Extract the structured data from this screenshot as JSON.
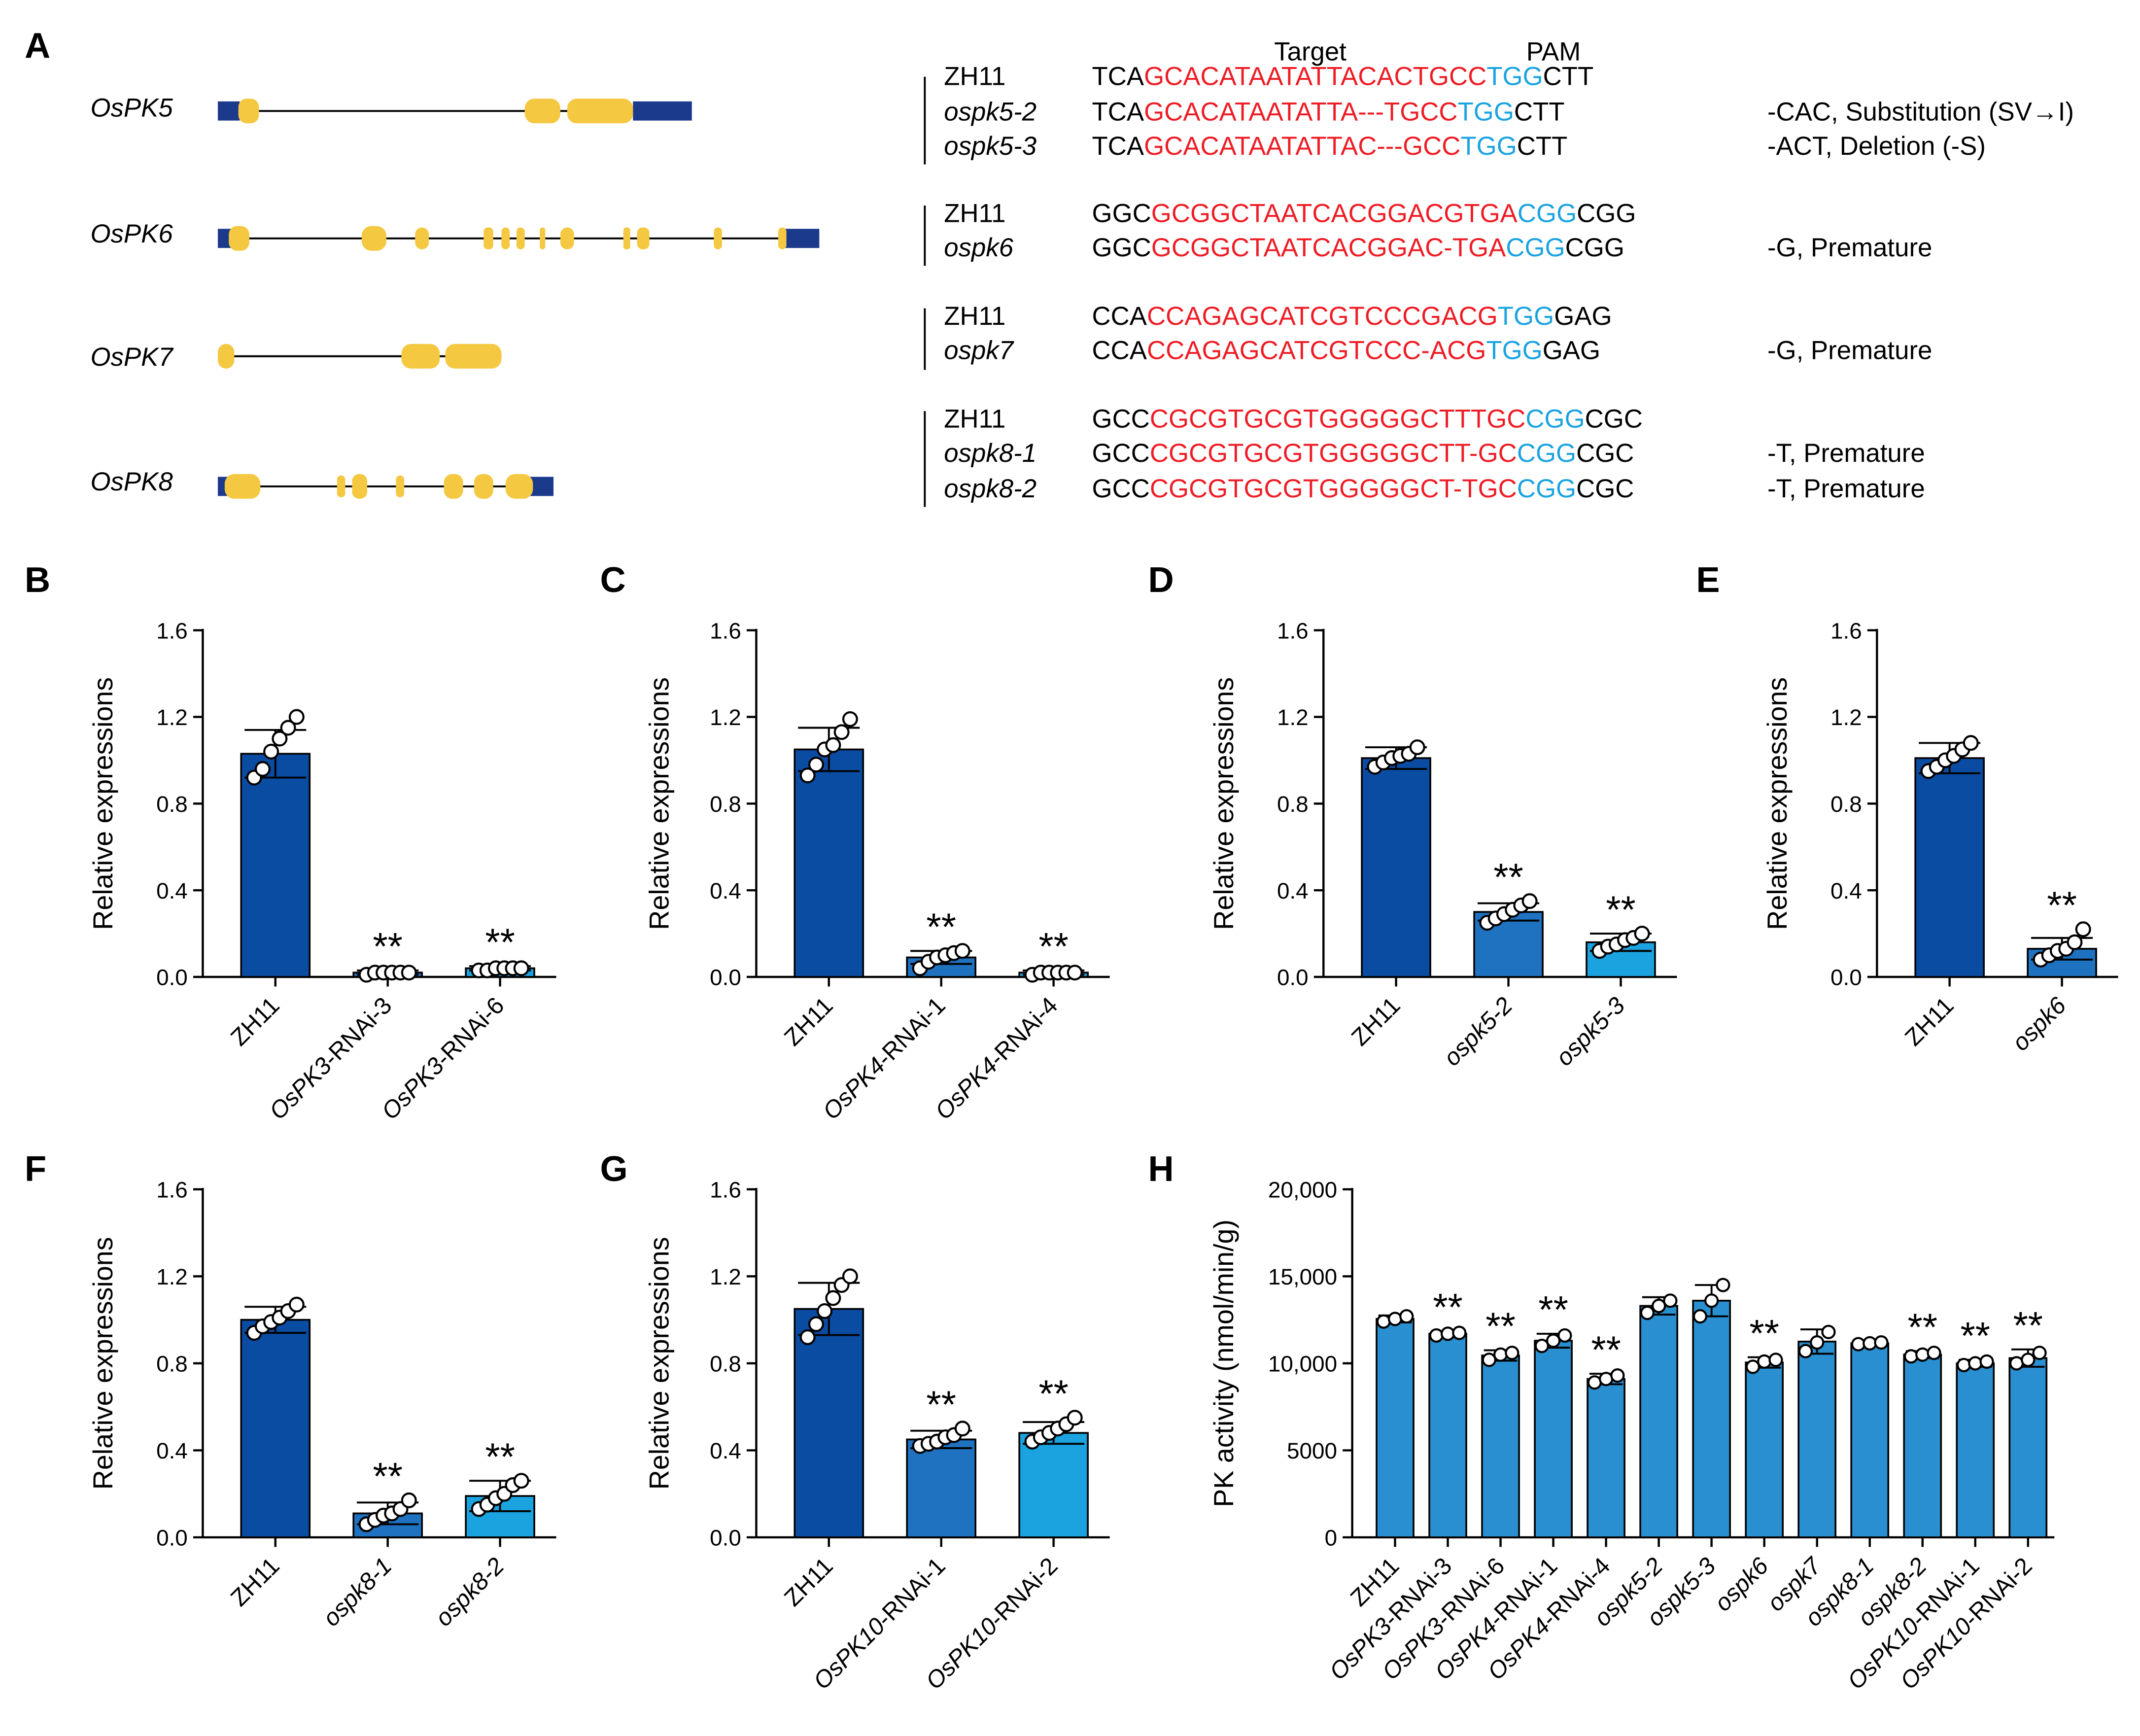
{
  "colors": {
    "bar_dark": "#0b4ca3",
    "bar_mid": "#1f72c0",
    "bar_light": "#1ba3df",
    "bar_h": "#2a8fd0",
    "target_red": "#ee1c25",
    "pam_blue": "#1aa3e0",
    "exon_yellow": "#f5c842",
    "utr_blue": "#1c3a8c"
  },
  "panel_a": {
    "label": "A",
    "col_target": "Target",
    "col_pam": "PAM",
    "genes": [
      {
        "name": "OsPK5"
      },
      {
        "name": "OsPK6"
      },
      {
        "name": "OsPK7"
      },
      {
        "name": "OsPK8"
      }
    ],
    "groups": [
      {
        "rows": [
          {
            "name": "ZH11",
            "italic": false,
            "p": "TCA",
            "t": "GCACATAATATTACACTGCC",
            "pam": "TGG",
            "s": "CTT",
            "note": ""
          },
          {
            "name": "ospk5-2",
            "italic": true,
            "p": "TCA",
            "t": "GCACATAATATTA---TGCC",
            "pam": "TGG",
            "s": "CTT",
            "note": "-CAC, Substitution (SV→I)"
          },
          {
            "name": "ospk5-3",
            "italic": true,
            "p": "TCA",
            "t": "GCACATAATATTAC---GCC",
            "pam": "TGG",
            "s": "CTT",
            "note": "-ACT,  Deletion (-S)"
          }
        ]
      },
      {
        "rows": [
          {
            "name": "ZH11",
            "italic": false,
            "p": "GGC",
            "t": "GCGGCTAATCACGGACGTGA",
            "pam": "CGG",
            "s": "CGG",
            "note": ""
          },
          {
            "name": "ospk6",
            "italic": true,
            "p": "GGC",
            "t": "GCGGCTAATCACGGAC-TGA",
            "pam": "CGG",
            "s": "CGG",
            "note": "-G, Premature"
          }
        ]
      },
      {
        "rows": [
          {
            "name": "ZH11",
            "italic": false,
            "p": "CCA",
            "t": "CCAGAGCATCGTCCCGACG",
            "pam": "TGG",
            "s": "GAG",
            "note": ""
          },
          {
            "name": "ospk7",
            "italic": true,
            "p": "CCA",
            "t": "CCAGAGCATCGTCCC-ACG",
            "pam": "TGG",
            "s": "GAG",
            "note": "-G, Premature"
          }
        ]
      },
      {
        "rows": [
          {
            "name": "ZH11",
            "italic": false,
            "p": "GCC",
            "t": "CGCGTGCGTGGGGGCTTTGC",
            "pam": "CGG",
            "s": "CGC",
            "note": ""
          },
          {
            "name": "ospk8-1",
            "italic": true,
            "p": "GCC",
            "t": "CGCGTGCGTGGGGGCTT-GC",
            "pam": "CGG",
            "s": "CGC",
            "note": "-T, Premature"
          },
          {
            "name": "ospk8-2",
            "italic": true,
            "p": "GCC",
            "t": "CGCGTGCGTGGGGGCT-TGC",
            "pam": "CGG",
            "s": "CGC",
            "note": "-T, Premature"
          }
        ]
      }
    ]
  },
  "chart_data": [
    {
      "panel": "B",
      "type": "bar",
      "ylabel": "Relative expressions",
      "ylim": [
        0,
        1.6
      ],
      "yticks": [
        "0.0",
        "0.4",
        "0.8",
        "1.2",
        "1.6"
      ],
      "categories": [
        {
          "pre": "",
          "it": "",
          "post": "ZH11"
        },
        {
          "pre": "",
          "it": "OsPK3",
          "post": "-RNAi-3"
        },
        {
          "pre": "",
          "it": "OsPK3",
          "post": "-RNAi-6"
        }
      ],
      "values": [
        1.03,
        0.02,
        0.04
      ],
      "errors": [
        0.11,
        0.01,
        0.01
      ],
      "points": [
        [
          0.92,
          0.96,
          1.04,
          1.1,
          1.15,
          1.2
        ],
        [
          0.01,
          0.02,
          0.02,
          0.02,
          0.02,
          0.02
        ],
        [
          0.03,
          0.03,
          0.04,
          0.04,
          0.04,
          0.04
        ]
      ],
      "annotations": [
        "",
        "**",
        "**"
      ]
    },
    {
      "panel": "C",
      "type": "bar",
      "ylabel": "Relative expressions",
      "ylim": [
        0,
        1.6
      ],
      "yticks": [
        "0.0",
        "0.4",
        "0.8",
        "1.2",
        "1.6"
      ],
      "categories": [
        {
          "pre": "",
          "it": "",
          "post": "ZH11"
        },
        {
          "pre": "",
          "it": "OsPK4",
          "post": "-RNAi-1"
        },
        {
          "pre": "",
          "it": "OsPK4",
          "post": "-RNAi-4"
        }
      ],
      "values": [
        1.05,
        0.09,
        0.02
      ],
      "errors": [
        0.1,
        0.03,
        0.01
      ],
      "points": [
        [
          0.93,
          0.98,
          1.05,
          1.07,
          1.13,
          1.19
        ],
        [
          0.04,
          0.07,
          0.09,
          0.1,
          0.11,
          0.12
        ],
        [
          0.01,
          0.02,
          0.02,
          0.02,
          0.02,
          0.02
        ]
      ],
      "annotations": [
        "",
        "**",
        "**"
      ]
    },
    {
      "panel": "D",
      "type": "bar",
      "ylabel": "Relative expressions",
      "ylim": [
        0,
        1.6
      ],
      "yticks": [
        "0.0",
        "0.4",
        "0.8",
        "1.2",
        "1.6"
      ],
      "categories": [
        {
          "pre": "",
          "it": "",
          "post": "ZH11"
        },
        {
          "pre": "",
          "it": "ospk5-2",
          "post": ""
        },
        {
          "pre": "",
          "it": "ospk5-3",
          "post": ""
        }
      ],
      "values": [
        1.01,
        0.3,
        0.16
      ],
      "errors": [
        0.05,
        0.04,
        0.04
      ],
      "points": [
        [
          0.97,
          0.99,
          1.01,
          1.02,
          1.03,
          1.06
        ],
        [
          0.25,
          0.27,
          0.29,
          0.31,
          0.33,
          0.35
        ],
        [
          0.12,
          0.14,
          0.15,
          0.17,
          0.18,
          0.2
        ]
      ],
      "annotations": [
        "",
        "**",
        "**"
      ]
    },
    {
      "panel": "E",
      "type": "bar",
      "ylabel": "Relative expressions",
      "ylim": [
        0,
        1.6
      ],
      "yticks": [
        "0.0",
        "0.4",
        "0.8",
        "1.2",
        "1.6"
      ],
      "categories": [
        {
          "pre": "",
          "it": "",
          "post": "ZH11"
        },
        {
          "pre": "",
          "it": "ospk6",
          "post": ""
        }
      ],
      "values": [
        1.01,
        0.13
      ],
      "errors": [
        0.07,
        0.05
      ],
      "points": [
        [
          0.95,
          0.97,
          1.0,
          1.02,
          1.05,
          1.08
        ],
        [
          0.08,
          0.1,
          0.12,
          0.13,
          0.16,
          0.22
        ]
      ],
      "annotations": [
        "",
        "**"
      ]
    },
    {
      "panel": "F",
      "type": "bar",
      "ylabel": "Relative expressions",
      "ylim": [
        0,
        1.6
      ],
      "yticks": [
        "0.0",
        "0.4",
        "0.8",
        "1.2",
        "1.6"
      ],
      "categories": [
        {
          "pre": "",
          "it": "",
          "post": "ZH11"
        },
        {
          "pre": "",
          "it": "ospk8-1",
          "post": ""
        },
        {
          "pre": "",
          "it": "ospk8-2",
          "post": ""
        }
      ],
      "values": [
        1.0,
        0.11,
        0.19
      ],
      "errors": [
        0.06,
        0.05,
        0.07
      ],
      "points": [
        [
          0.94,
          0.97,
          0.99,
          1.01,
          1.04,
          1.07
        ],
        [
          0.06,
          0.08,
          0.1,
          0.11,
          0.13,
          0.17
        ],
        [
          0.13,
          0.15,
          0.18,
          0.2,
          0.24,
          0.26
        ]
      ],
      "annotations": [
        "",
        "**",
        "**"
      ]
    },
    {
      "panel": "G",
      "type": "bar",
      "ylabel": "Relative expressions",
      "ylim": [
        0,
        1.6
      ],
      "yticks": [
        "0.0",
        "0.4",
        "0.8",
        "1.2",
        "1.6"
      ],
      "categories": [
        {
          "pre": "",
          "it": "",
          "post": "ZH11"
        },
        {
          "pre": "",
          "it": "OsPK10",
          "post": "-RNAi-1"
        },
        {
          "pre": "",
          "it": "OsPK10",
          "post": "-RNAi-2"
        }
      ],
      "values": [
        1.05,
        0.45,
        0.48
      ],
      "errors": [
        0.12,
        0.04,
        0.05
      ],
      "points": [
        [
          0.92,
          0.98,
          1.04,
          1.1,
          1.16,
          1.2
        ],
        [
          0.42,
          0.43,
          0.44,
          0.46,
          0.47,
          0.5
        ],
        [
          0.44,
          0.46,
          0.48,
          0.5,
          0.52,
          0.55
        ]
      ],
      "annotations": [
        "",
        "**",
        "**"
      ]
    },
    {
      "panel": "H",
      "type": "bar",
      "ylabel": "PK activity (nmol/min/g)",
      "ylim": [
        0,
        20000
      ],
      "yticks": [
        "0",
        "5000",
        "10,000",
        "15,000",
        "20,000"
      ],
      "categories": [
        {
          "pre": "",
          "it": "",
          "post": "ZH11"
        },
        {
          "pre": "",
          "it": "OsPK3",
          "post": "-RNAi-3"
        },
        {
          "pre": "",
          "it": "OsPK3",
          "post": "-RNAi-6"
        },
        {
          "pre": "",
          "it": "OsPK4",
          "post": "-RNAi-1"
        },
        {
          "pre": "",
          "it": "OsPK4",
          "post": "-RNAi-4"
        },
        {
          "pre": "",
          "it": "ospk5-2",
          "post": ""
        },
        {
          "pre": "",
          "it": "ospk5-3",
          "post": ""
        },
        {
          "pre": "",
          "it": "ospk6",
          "post": ""
        },
        {
          "pre": "",
          "it": "ospk7",
          "post": ""
        },
        {
          "pre": "",
          "it": "ospk8-1",
          "post": ""
        },
        {
          "pre": "",
          "it": "ospk8-2",
          "post": ""
        },
        {
          "pre": "",
          "it": "OsPK10",
          "post": "-RNAi-1"
        },
        {
          "pre": "",
          "it": "OsPK10",
          "post": "-RNAi-2"
        }
      ],
      "values": [
        12550,
        11700,
        10450,
        11300,
        9100,
        13300,
        13600,
        10050,
        11250,
        11150,
        10500,
        10000,
        10300
      ],
      "errors": [
        200,
        150,
        300,
        400,
        300,
        500,
        900,
        300,
        700,
        100,
        200,
        200,
        500
      ],
      "points": [
        [
          12400,
          12550,
          12700
        ],
        [
          11600,
          11700,
          11750
        ],
        [
          10200,
          10500,
          10600
        ],
        [
          11000,
          11300,
          11600
        ],
        [
          8900,
          9100,
          9300
        ],
        [
          12900,
          13300,
          13600
        ],
        [
          12700,
          13600,
          14500
        ],
        [
          9800,
          10100,
          10200
        ],
        [
          10700,
          11200,
          11800
        ],
        [
          11100,
          11150,
          11200
        ],
        [
          10400,
          10500,
          10600
        ],
        [
          9900,
          10000,
          10100
        ],
        [
          10000,
          10200,
          10600
        ]
      ],
      "annotations": [
        "",
        "**",
        "**",
        "**",
        "**",
        "",
        "",
        "**",
        "",
        "",
        "**",
        "**",
        "**"
      ]
    }
  ]
}
